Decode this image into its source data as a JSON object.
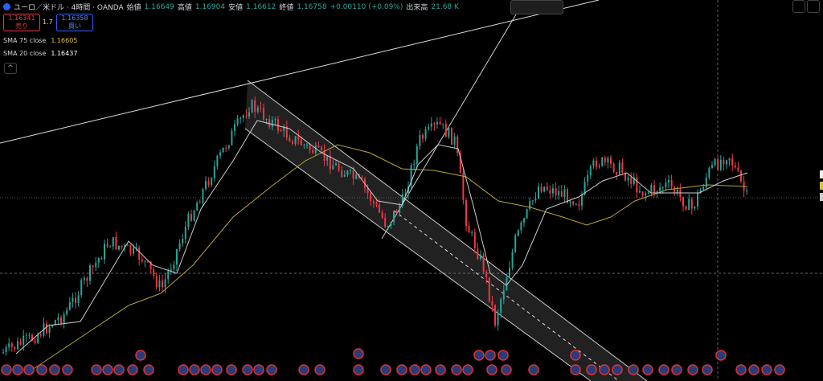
{
  "header": {
    "symbol": "ユーロ／米ドル · 4時間 · OANDA",
    "ohlc": [
      {
        "label": "始値",
        "value": "1.16649"
      },
      {
        "label": "高値",
        "value": "1.16904"
      },
      {
        "label": "安値",
        "value": "1.16612"
      },
      {
        "label": "終値",
        "value": "1.16758"
      }
    ],
    "change": "+0.00110 (+0.09%)",
    "volume_label": "出来高",
    "volume": "21.68 K"
  },
  "trade": {
    "sell_price": "1.16341",
    "sell_label": "売り",
    "spread": "1.7",
    "buy_price": "1.16358",
    "buy_label": "買い"
  },
  "indicators": [
    {
      "name": "SMA 75 close",
      "value": "1.16605"
    },
    {
      "name": "SMA 20 close",
      "value": "1.16437"
    }
  ]
}
